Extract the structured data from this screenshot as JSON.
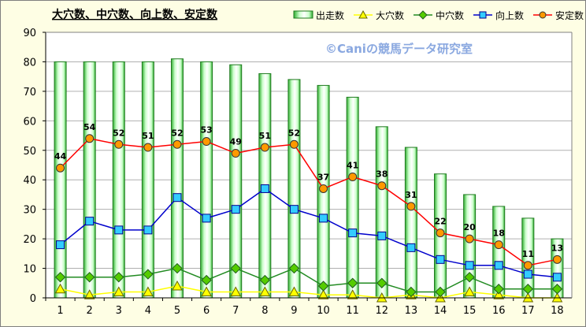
{
  "chart_data": {
    "type": "bar",
    "title": "大穴数、中穴数、向上数、安定数",
    "watermark": "©Caniの競馬データ研究室",
    "categories": [
      "1",
      "2",
      "3",
      "4",
      "5",
      "6",
      "7",
      "8",
      "9",
      "10",
      "11",
      "12",
      "13",
      "14",
      "15",
      "16",
      "17",
      "18"
    ],
    "ylim": [
      0,
      90
    ],
    "yticks": [
      0,
      10,
      20,
      30,
      40,
      50,
      60,
      70,
      80,
      90
    ],
    "grid": true,
    "legend_position": "top-right",
    "series": [
      {
        "name": "出走数",
        "kind": "bar",
        "color": "#22aa22",
        "fill": "#ccffcc",
        "values": [
          80,
          80,
          80,
          80,
          81,
          80,
          79,
          76,
          74,
          72,
          68,
          58,
          51,
          42,
          35,
          31,
          27,
          20
        ]
      },
      {
        "name": "大穴数",
        "kind": "line",
        "marker": "triangle",
        "color": "#ffff00",
        "markerFill": "#ffff00",
        "values": [
          3,
          1,
          2,
          2,
          4,
          2,
          2,
          2,
          2,
          1,
          1,
          0,
          1,
          0,
          2,
          1,
          0,
          0
        ]
      },
      {
        "name": "中穴数",
        "kind": "line",
        "marker": "diamond",
        "color": "#228b22",
        "markerFill": "#55cc00",
        "values": [
          7,
          7,
          7,
          8,
          10,
          6,
          10,
          6,
          10,
          4,
          5,
          5,
          2,
          2,
          7,
          3,
          3,
          3
        ]
      },
      {
        "name": "向上数",
        "kind": "line",
        "marker": "square",
        "color": "#0000cc",
        "markerFill": "#33ccff",
        "values": [
          18,
          26,
          23,
          23,
          34,
          27,
          30,
          37,
          30,
          27,
          22,
          21,
          17,
          13,
          11,
          11,
          8,
          7
        ]
      },
      {
        "name": "安定数",
        "kind": "line",
        "marker": "circle",
        "color": "#ff0000",
        "markerFill": "#ff9900",
        "labels": true,
        "values": [
          44,
          54,
          52,
          51,
          52,
          53,
          49,
          51,
          52,
          37,
          41,
          38,
          31,
          22,
          20,
          18,
          11,
          13
        ]
      }
    ]
  }
}
